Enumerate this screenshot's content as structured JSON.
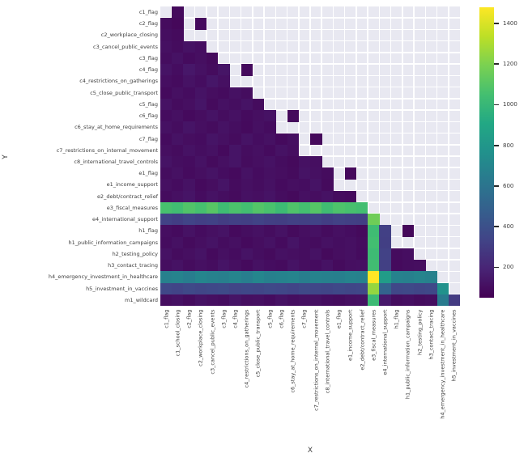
{
  "figure": {
    "background": "#ffffff"
  },
  "axes": {
    "x_title": "X",
    "y_title": "Y"
  },
  "panel": {
    "background": "#e8e8f1",
    "gridline_color": "#ffffff"
  },
  "colorbar": {
    "orientation": "vertical",
    "position": "right",
    "vmin": 50,
    "vmax": 1480,
    "ticks": [
      200,
      400,
      600,
      800,
      1000,
      1200,
      1400
    ]
  },
  "viridis_stops": [
    "#440154",
    "#482475",
    "#414487",
    "#355f8d",
    "#2a788e",
    "#21918c",
    "#22a884",
    "#44bf70",
    "#7ad151",
    "#bddf26",
    "#fde725"
  ],
  "chart_data": {
    "type": "heatmap",
    "title": "",
    "xlabel": "X",
    "ylabel": "Y",
    "colormap": "viridis",
    "vmin": 50,
    "vmax": 1480,
    "grid": true,
    "x_labels": [
      "c1_flag",
      "c1_school_closing",
      "c2_flag",
      "c2_workplace_closing",
      "c3_cancel_public_events",
      "c3_flag",
      "c4_flag",
      "c4_restrictions_on_gatherings",
      "c5_close_public_transport",
      "c5_flag",
      "c6_flag",
      "c6_stay_at_home_requirements",
      "c7_flag",
      "c7_restrictions_on_internal_movement",
      "c8_international_travel_controls",
      "e1_flag",
      "e1_income_support",
      "e2_debt/contract_relief",
      "e3_fiscal_measures",
      "e4_international_support",
      "h1_flag",
      "h1_public_information_campaigns",
      "h2_testing_policy",
      "h3_contact_tracing",
      "h4_emergency_investment_in_healthcare",
      "h5_investment_in_vaccines"
    ],
    "y_labels": [
      "c1_flag",
      "c2_flag",
      "c2_workplace_closing",
      "c3_cancel_public_events",
      "c3_flag",
      "c4_flag",
      "c4_restrictions_on_gatherings",
      "c5_close_public_transport",
      "c5_flag",
      "c6_flag",
      "c6_stay_at_home_requirements",
      "c7_flag",
      "c7_restrictions_on_internal_movement",
      "c8_international_travel_controls",
      "e1_flag",
      "e1_income_support",
      "e2_debt/contract_relief",
      "e3_fiscal_measures",
      "e4_international_support",
      "h1_flag",
      "h1_public_information_campaigns",
      "h2_testing_policy",
      "h3_contact_tracing",
      "h4_emergency_investment_in_healthcare",
      "h5_investment_in_vaccines",
      "m1_wildcard"
    ],
    "matrix": [
      [
        null,
        85,
        null,
        null,
        null,
        null,
        null,
        null,
        null,
        null,
        null,
        null,
        null,
        null,
        null,
        null,
        null,
        null,
        null,
        null,
        null,
        null,
        null,
        null,
        null,
        null
      ],
      [
        95,
        78,
        null,
        88,
        null,
        null,
        null,
        null,
        null,
        null,
        null,
        null,
        null,
        null,
        null,
        null,
        null,
        null,
        null,
        null,
        null,
        null,
        null,
        null,
        null,
        null
      ],
      [
        102,
        90,
        null,
        null,
        null,
        null,
        null,
        null,
        null,
        null,
        null,
        null,
        null,
        null,
        null,
        null,
        null,
        null,
        null,
        null,
        null,
        null,
        null,
        null,
        null,
        null
      ],
      [
        110,
        95,
        120,
        105,
        null,
        null,
        null,
        null,
        null,
        null,
        null,
        null,
        null,
        null,
        null,
        null,
        null,
        null,
        null,
        null,
        null,
        null,
        null,
        null,
        null,
        null
      ],
      [
        98,
        118,
        92,
        108,
        85,
        null,
        null,
        null,
        null,
        null,
        null,
        null,
        null,
        null,
        null,
        null,
        null,
        null,
        null,
        null,
        null,
        null,
        null,
        null,
        null,
        null
      ],
      [
        125,
        100,
        140,
        115,
        95,
        130,
        null,
        88,
        null,
        null,
        null,
        null,
        null,
        null,
        null,
        null,
        null,
        null,
        null,
        null,
        null,
        null,
        null,
        null,
        null,
        null
      ],
      [
        105,
        92,
        118,
        100,
        135,
        110,
        null,
        null,
        null,
        null,
        null,
        null,
        null,
        null,
        null,
        null,
        null,
        null,
        null,
        null,
        null,
        null,
        null,
        null,
        null,
        null
      ],
      [
        88,
        112,
        96,
        124,
        104,
        92,
        115,
        98,
        null,
        null,
        null,
        null,
        null,
        null,
        null,
        null,
        null,
        null,
        null,
        null,
        null,
        null,
        null,
        null,
        null,
        null
      ],
      [
        120,
        95,
        108,
        132,
        90,
        116,
        102,
        125,
        94,
        null,
        null,
        null,
        null,
        null,
        null,
        null,
        null,
        null,
        null,
        null,
        null,
        null,
        null,
        null,
        null,
        null
      ],
      [
        96,
        110,
        88,
        104,
        122,
        98,
        114,
        92,
        106,
        118,
        null,
        85,
        null,
        null,
        null,
        null,
        null,
        null,
        null,
        null,
        null,
        null,
        null,
        null,
        null,
        null
      ],
      [
        115,
        98,
        126,
        108,
        94,
        120,
        102,
        88,
        112,
        96,
        null,
        null,
        null,
        null,
        null,
        null,
        null,
        null,
        null,
        null,
        null,
        null,
        null,
        null,
        null,
        null
      ],
      [
        92,
        118,
        104,
        96,
        128,
        110,
        94,
        122,
        100,
        116,
        88,
        108,
        null,
        82,
        null,
        null,
        null,
        null,
        null,
        null,
        null,
        null,
        null,
        null,
        null,
        null
      ],
      [
        108,
        94,
        120,
        102,
        114,
        88,
        126,
        98,
        110,
        92,
        118,
        104,
        null,
        null,
        null,
        null,
        null,
        null,
        null,
        null,
        null,
        null,
        null,
        null,
        null,
        null
      ],
      [
        124,
        102,
        96,
        118,
        90,
        112,
        128,
        94,
        106,
        120,
        98,
        86,
        114,
        108,
        null,
        null,
        null,
        null,
        null,
        null,
        null,
        null,
        null,
        null,
        null,
        null
      ],
      [
        98,
        116,
        92,
        108,
        124,
        100,
        88,
        118,
        96,
        112,
        104,
        90,
        122,
        110,
        95,
        null,
        80,
        null,
        null,
        null,
        null,
        null,
        null,
        null,
        null,
        null
      ],
      [
        112,
        96,
        120,
        88,
        104,
        126,
        94,
        110,
        98,
        116,
        92,
        108,
        100,
        124,
        90,
        null,
        null,
        null,
        null,
        null,
        null,
        null,
        null,
        null,
        null,
        null
      ],
      [
        94,
        110,
        128,
        96,
        118,
        102,
        90,
        114,
        108,
        122,
        98,
        86,
        112,
        104,
        120,
        95,
        88,
        null,
        null,
        null,
        null,
        null,
        null,
        null,
        null,
        null
      ],
      [
        1060,
        1040,
        1085,
        1055,
        1100,
        1030,
        1070,
        1045,
        1090,
        1065,
        1020,
        1080,
        1050,
        1095,
        1035,
        1075,
        1060,
        1045,
        null,
        null,
        null,
        null,
        null,
        null,
        null,
        null
      ],
      [
        325,
        310,
        335,
        318,
        328,
        305,
        320,
        312,
        330,
        315,
        308,
        322,
        316,
        332,
        310,
        325,
        318,
        312,
        1165,
        null,
        null,
        null,
        null,
        null,
        null,
        null
      ],
      [
        105,
        92,
        118,
        96,
        110,
        124,
        88,
        102,
        114,
        98,
        120,
        90,
        108,
        116,
        94,
        112,
        100,
        86,
        1030,
        320,
        null,
        78,
        null,
        null,
        null,
        null
      ],
      [
        96,
        114,
        90,
        108,
        122,
        98,
        112,
        88,
        104,
        118,
        92,
        126,
        100,
        94,
        116,
        102,
        110,
        95,
        1042,
        312,
        null,
        null,
        null,
        null,
        null,
        null
      ],
      [
        118,
        94,
        106,
        122,
        88,
        110,
        96,
        124,
        102,
        90,
        114,
        108,
        98,
        120,
        86,
        104,
        112,
        92,
        1025,
        325,
        95,
        105,
        null,
        null,
        null,
        null
      ],
      [
        102,
        120,
        94,
        112,
        98,
        126,
        108,
        88,
        116,
        100,
        92,
        122,
        104,
        96,
        118,
        90,
        106,
        110,
        1038,
        316,
        88,
        98,
        104,
        null,
        null,
        null
      ],
      [
        668,
        685,
        652,
        695,
        672,
        660,
        688,
        655,
        700,
        665,
        678,
        690,
        658,
        682,
        670,
        662,
        686,
        674,
        1480,
        835,
        680,
        666,
        692,
        676,
        null,
        null
      ],
      [
        352,
        338,
        360,
        344,
        356,
        366,
        340,
        354,
        346,
        362,
        350,
        336,
        364,
        348,
        342,
        358,
        346,
        353,
        1250,
        510,
        350,
        361,
        344,
        356,
        772,
        null
      ],
      [
        104,
        116,
        94,
        120,
        108,
        98,
        126,
        106,
        112,
        96,
        118,
        102,
        110,
        114,
        100,
        95,
        107,
        111,
        1020,
        150,
        99,
        109,
        93,
        103,
        640,
        295
      ]
    ]
  }
}
